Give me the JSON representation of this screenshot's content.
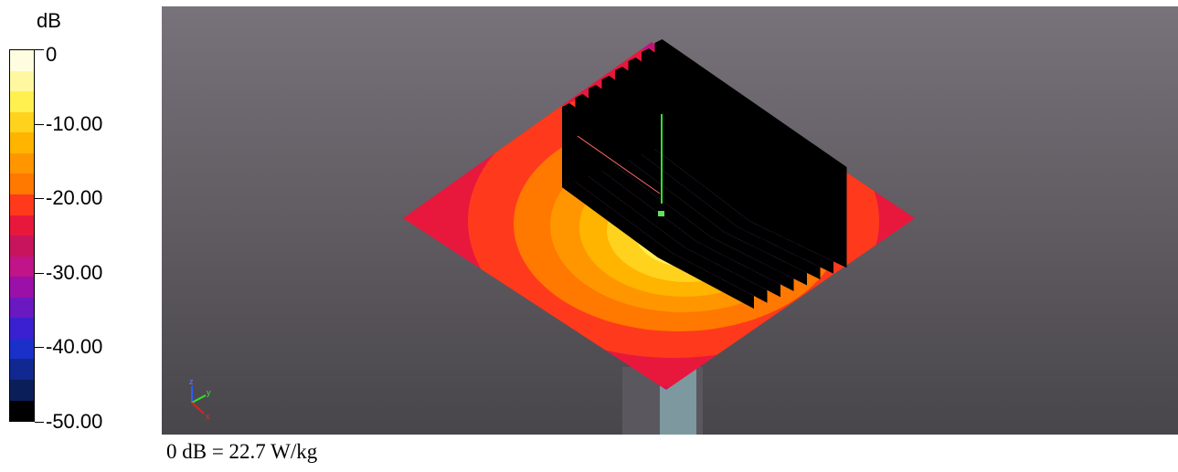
{
  "legend": {
    "unit": "dB",
    "ticks": [
      {
        "label": "0",
        "value": 0
      },
      {
        "label": "-10.00",
        "value": -10
      },
      {
        "label": "-20.00",
        "value": -20
      },
      {
        "label": "-30.00",
        "value": -30
      },
      {
        "label": "-40.00",
        "value": -40
      },
      {
        "label": "-50.00",
        "value": -50
      }
    ],
    "range": [
      -50,
      0
    ],
    "colors_top_to_bottom": [
      "#fffde0",
      "#fff8a0",
      "#fff050",
      "#ffd21e",
      "#ffb400",
      "#ff9600",
      "#ff7800",
      "#ff3a1c",
      "#e8183c",
      "#c8145c",
      "#c01488",
      "#9a10a8",
      "#6a18c0",
      "#3a20d0",
      "#1a30c8",
      "#102890",
      "#0a1e5a",
      "#000000"
    ]
  },
  "viewport": {
    "background_top": "#78727a",
    "background_bottom": "#48464a",
    "axes": {
      "x": "x",
      "y": "y",
      "z": "z"
    }
  },
  "caption": "0 dB = 22.7 W/kg"
}
